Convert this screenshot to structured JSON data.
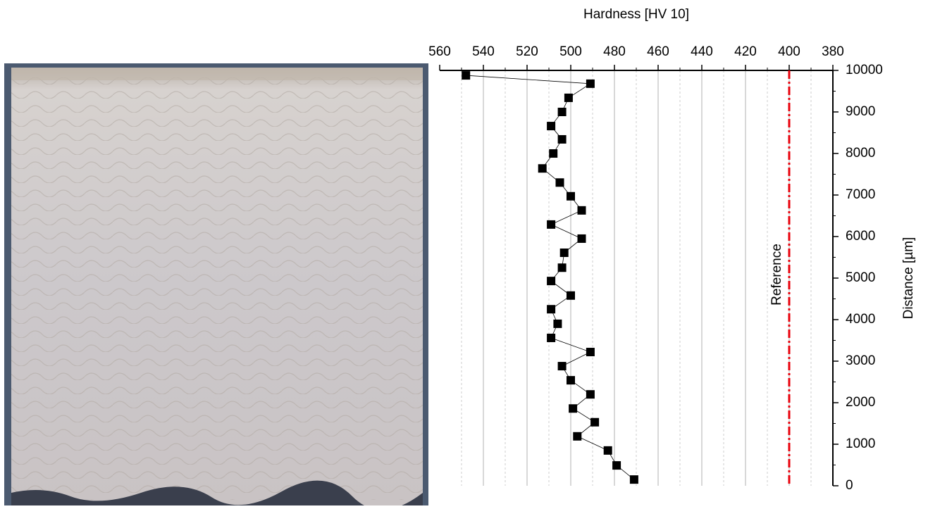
{
  "chart_data": {
    "type": "line",
    "xlabel": "Hardness [HV 10]",
    "ylabel": "Distance [µm]",
    "x": [
      548,
      491,
      501,
      504,
      509,
      504,
      508,
      513,
      505,
      500,
      495,
      509,
      495,
      503,
      504,
      509,
      500,
      509,
      506,
      509,
      491,
      504,
      500,
      491,
      499,
      489,
      497,
      483,
      479,
      471
    ],
    "values": [
      9880,
      9680,
      9340,
      9000,
      8660,
      8340,
      8000,
      7640,
      7300,
      6970,
      6630,
      6290,
      5950,
      5610,
      5250,
      4930,
      4580,
      4250,
      3900,
      3560,
      3220,
      2880,
      2540,
      2200,
      1860,
      1530,
      1190,
      850,
      490,
      150
    ],
    "color": "#000000",
    "xlim": [
      560,
      380
    ],
    "xticks": [
      560,
      540,
      520,
      500,
      480,
      460,
      440,
      420,
      400,
      380
    ],
    "ylim": [
      0,
      10000
    ],
    "yticks": [
      0,
      1000,
      2000,
      3000,
      4000,
      5000,
      6000,
      7000,
      8000,
      9000,
      10000
    ],
    "grid": true,
    "reference": {
      "label": "Reference",
      "value": 400,
      "color": "#e8000b"
    }
  }
}
